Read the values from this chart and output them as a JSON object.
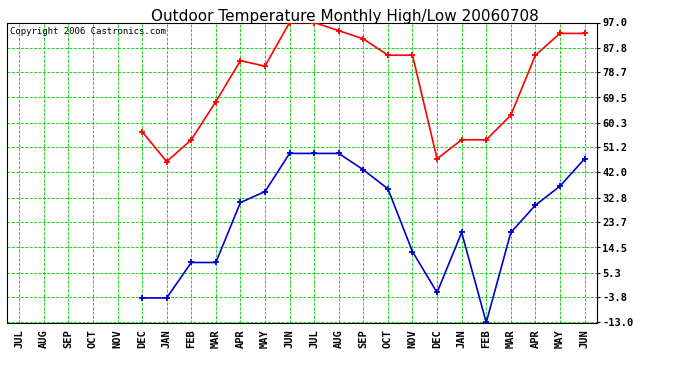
{
  "title": "Outdoor Temperature Monthly High/Low 20060708",
  "copyright": "Copyright 2006 Castronics.com",
  "months": [
    "JUL",
    "AUG",
    "SEP",
    "OCT",
    "NOV",
    "DEC",
    "JAN",
    "FEB",
    "MAR",
    "APR",
    "MAY",
    "JUN",
    "JUL",
    "AUG",
    "SEP",
    "OCT",
    "NOV",
    "DEC",
    "JAN",
    "FEB",
    "MAR",
    "APR",
    "MAY",
    "JUN"
  ],
  "high_values": [
    null,
    null,
    null,
    null,
    null,
    57,
    46,
    54,
    68,
    83,
    81,
    97,
    97,
    94,
    91,
    85,
    85,
    47,
    54,
    54,
    63,
    85,
    93,
    93
  ],
  "low_values": [
    null,
    null,
    null,
    null,
    null,
    -4,
    -4,
    9,
    9,
    31,
    35,
    49,
    49,
    49,
    43,
    36,
    13,
    -2,
    20,
    -13,
    20,
    30,
    37,
    47
  ],
  "yticks": [
    97.0,
    87.8,
    78.7,
    69.5,
    60.3,
    51.2,
    42.0,
    32.8,
    23.7,
    14.5,
    5.3,
    -3.8,
    -13.0
  ],
  "ymin": -13.0,
  "ymax": 97.0,
  "high_color": "#ff0000",
  "low_color": "#0000cc",
  "grid_color": "#00cc00",
  "bg_color": "#ffffff",
  "title_fontsize": 11,
  "copyright_fontsize": 6.5,
  "tick_fontsize": 7.5,
  "ytick_fontsize": 7.5
}
